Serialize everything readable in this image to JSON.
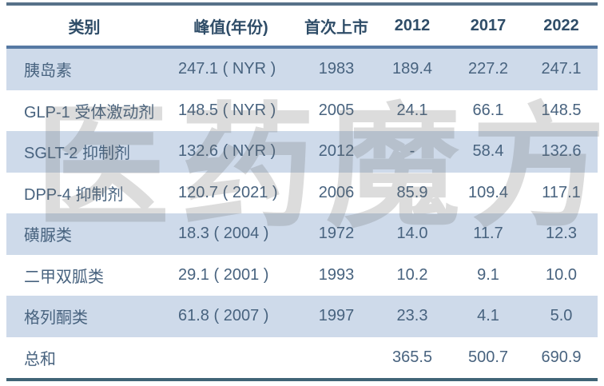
{
  "chart_data": {
    "type": "table",
    "columns": [
      "类别",
      "峰值(年份)",
      "首次上市",
      "2012",
      "2017",
      "2022"
    ],
    "rows": [
      [
        "胰岛素",
        "247.1 ( NYR )",
        "1983",
        "189.4",
        "227.2",
        "247.1"
      ],
      [
        "GLP-1 受体激动剂",
        "148.5 ( NYR )",
        "2005",
        "24.1",
        "66.1",
        "148.5"
      ],
      [
        "SGLT-2 抑制剂",
        "132.6 ( NYR )",
        "2012",
        "-",
        "58.4",
        "132.6"
      ],
      [
        "DPP-4 抑制剂",
        "120.7 ( 2021 )",
        "2006",
        "85.9",
        "109.4",
        "117.1"
      ],
      [
        "磺脲类",
        "18.3 ( 2004 )",
        "1972",
        "14.0",
        "11.7",
        "12.3"
      ],
      [
        "二甲双胍类",
        "29.1 ( 2001 )",
        "1993",
        "10.2",
        "9.1",
        "10.0"
      ],
      [
        "格列酮类",
        "61.8 ( 2007 )",
        "1997",
        "23.3",
        "4.1",
        "5.0"
      ],
      [
        "总和",
        "",
        "",
        "365.5",
        "500.7",
        "690.9"
      ]
    ],
    "layout": {
      "stripe_rows": [
        0,
        2,
        4,
        6
      ],
      "column_alignment": [
        "left",
        "left",
        "center",
        "center",
        "center",
        "center"
      ]
    }
  },
  "watermark": {
    "text": "医药魔方"
  },
  "colors": {
    "stripe": "#cedaea",
    "top_border": "#577189",
    "header_divider": "#5679a3",
    "bottom_border": "#406476",
    "header_text": "#2f4d68",
    "body_text": "#48637f"
  }
}
